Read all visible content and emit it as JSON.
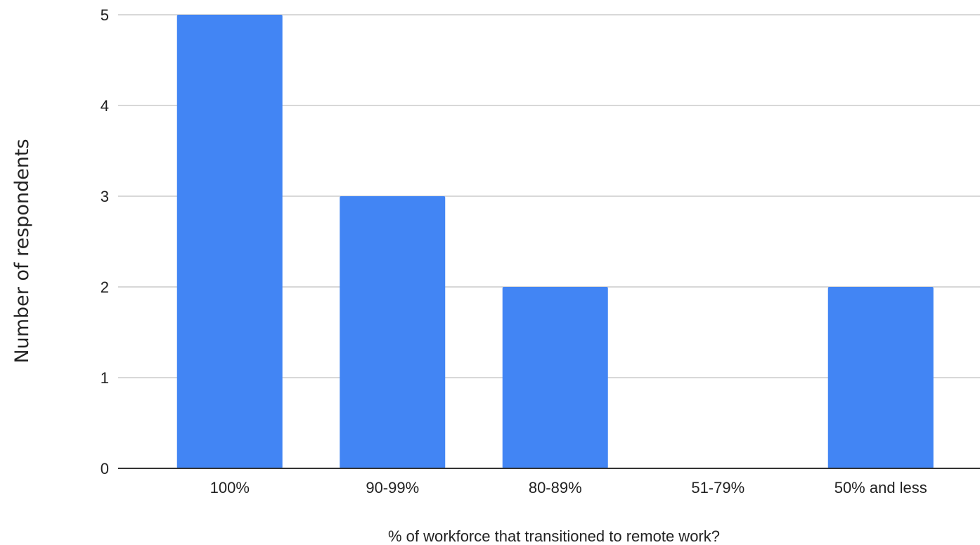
{
  "chart_data": {
    "type": "bar",
    "categories": [
      "100%",
      "90-99%",
      "80-89%",
      "51-79%",
      "50% and less"
    ],
    "values": [
      5,
      3,
      2,
      0,
      2
    ],
    "xlabel": "% of workforce that transitioned to remote work?",
    "ylabel": "Number of respondents",
    "ylim": [
      0,
      5
    ],
    "yticks": [
      0,
      1,
      2,
      3,
      4,
      5
    ],
    "grid": true,
    "legend": "none",
    "colors": {
      "bar": "#4285f4",
      "grid": "#cccccc",
      "axis": "#333333"
    }
  }
}
